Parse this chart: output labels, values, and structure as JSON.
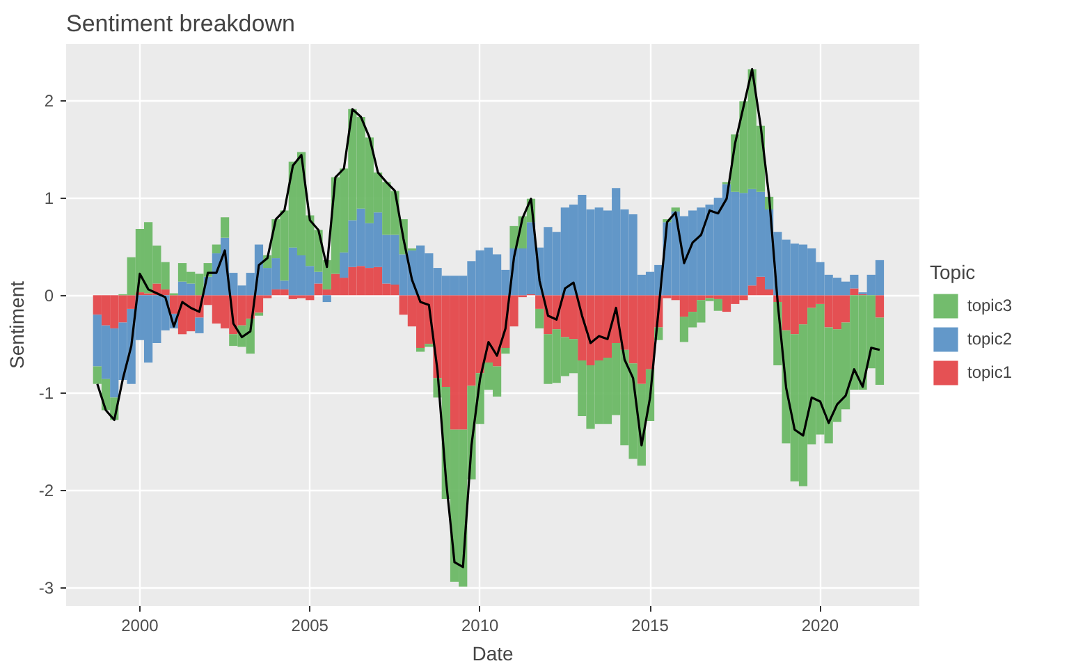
{
  "chart_data": {
    "type": "bar",
    "title": "Sentiment breakdown",
    "xlabel": "Date",
    "ylabel": "Sentiment",
    "legend_title": "Topic",
    "legend": "right",
    "grid": true,
    "stacked": true,
    "x": [
      "1998-10",
      "1999-01",
      "1999-04",
      "1999-07",
      "1999-10",
      "2000-01",
      "2000-04",
      "2000-07",
      "2000-10",
      "2001-01",
      "2001-04",
      "2001-07",
      "2001-10",
      "2002-01",
      "2002-04",
      "2002-07",
      "2002-10",
      "2003-01",
      "2003-04",
      "2003-07",
      "2003-10",
      "2004-01",
      "2004-04",
      "2004-07",
      "2004-10",
      "2005-01",
      "2005-04",
      "2005-07",
      "2005-10",
      "2006-01",
      "2006-04",
      "2006-07",
      "2006-10",
      "2007-01",
      "2007-04",
      "2007-07",
      "2007-10",
      "2008-01",
      "2008-04",
      "2008-07",
      "2008-10",
      "2009-01",
      "2009-04",
      "2009-07",
      "2009-10",
      "2010-01",
      "2010-04",
      "2010-07",
      "2010-10",
      "2011-01",
      "2011-04",
      "2011-07",
      "2011-10",
      "2012-01",
      "2012-04",
      "2012-07",
      "2012-10",
      "2013-01",
      "2013-04",
      "2013-07",
      "2013-10",
      "2014-01",
      "2014-04",
      "2014-07",
      "2014-10",
      "2015-01",
      "2015-04",
      "2015-07",
      "2015-10",
      "2016-01",
      "2016-04",
      "2016-07",
      "2016-10",
      "2017-01",
      "2017-04",
      "2017-07",
      "2017-10",
      "2018-01",
      "2018-04",
      "2018-07",
      "2018-10",
      "2019-01",
      "2019-04",
      "2019-07",
      "2019-10",
      "2020-01",
      "2020-04",
      "2020-07",
      "2020-10",
      "2021-01",
      "2021-04",
      "2021-07",
      "2021-10"
    ],
    "xlim": [
      "1997-11",
      "2022-12"
    ],
    "xticks": [
      "2000",
      "2005",
      "2010",
      "2015",
      "2020"
    ],
    "ylim": [
      -3.19,
      2.58
    ],
    "yticks": [
      -3,
      -2,
      -1,
      0,
      1,
      2
    ],
    "series": [
      {
        "name": "topic1",
        "color": "#e4484b",
        "values": [
          -0.2,
          -0.31,
          -0.34,
          -0.28,
          -0.14,
          0.03,
          0.02,
          0.12,
          0.06,
          -0.19,
          -0.4,
          -0.37,
          -0.23,
          -0.1,
          -0.29,
          -0.34,
          -0.4,
          -0.31,
          -0.24,
          -0.18,
          -0.03,
          0.06,
          0.06,
          -0.04,
          -0.03,
          -0.05,
          0.12,
          0.06,
          0.22,
          0.18,
          0.29,
          0.3,
          0.28,
          0.29,
          0.12,
          0.11,
          -0.2,
          -0.32,
          -0.54,
          -0.5,
          -0.85,
          -0.94,
          -1.38,
          -1.38,
          -0.93,
          -0.8,
          -0.69,
          -0.73,
          -0.54,
          -0.32,
          -0.02,
          0.01,
          -0.14,
          -0.4,
          -0.35,
          -0.43,
          -0.45,
          -0.67,
          -0.72,
          -0.67,
          -0.64,
          -0.49,
          -0.56,
          -0.7,
          -0.91,
          -0.76,
          -0.33,
          -0.03,
          -0.05,
          -0.22,
          -0.17,
          -0.05,
          -0.03,
          -0.04,
          -0.17,
          -0.09,
          -0.05,
          0.1,
          0.19,
          0.06,
          -0.07,
          -0.36,
          -0.4,
          -0.3,
          -0.13,
          -0.09,
          -0.33,
          -0.35,
          -0.28,
          0.07,
          0.01,
          0.0,
          -0.23
        ]
      },
      {
        "name": "topic2",
        "color": "#5b92c6",
        "values": [
          -0.53,
          -0.55,
          -0.71,
          -0.59,
          -0.77,
          -0.46,
          -0.69,
          -0.49,
          -0.36,
          -0.15,
          0.14,
          0.12,
          -0.16,
          0.19,
          0.43,
          0.59,
          0.23,
          0.1,
          0.23,
          0.52,
          0.28,
          0.32,
          0.09,
          0.49,
          0.41,
          0.3,
          0.12,
          -0.07,
          0.0,
          0.26,
          0.48,
          0.59,
          0.46,
          0.56,
          0.5,
          0.51,
          0.42,
          0.46,
          0.51,
          0.43,
          0.28,
          0.2,
          0.2,
          0.2,
          0.35,
          0.46,
          0.49,
          0.42,
          0.26,
          0.48,
          0.48,
          0.74,
          0.49,
          0.7,
          0.65,
          0.9,
          0.93,
          1.03,
          0.88,
          0.9,
          0.87,
          1.1,
          0.88,
          0.83,
          0.21,
          0.24,
          0.31,
          0.75,
          0.86,
          0.81,
          0.87,
          0.9,
          0.93,
          1.0,
          1.14,
          1.06,
          1.05,
          0.99,
          0.87,
          0.82,
          0.65,
          0.57,
          0.53,
          0.52,
          0.48,
          0.34,
          0.21,
          0.18,
          0.14,
          0.14,
          0.02,
          0.21,
          0.36
        ]
      },
      {
        "name": "topic3",
        "color": "#6bb865",
        "values": [
          -0.18,
          -0.32,
          -0.23,
          0.01,
          0.39,
          0.65,
          0.73,
          0.39,
          0.28,
          0.02,
          0.19,
          0.12,
          0.22,
          0.14,
          0.09,
          0.21,
          -0.12,
          -0.22,
          -0.36,
          -0.03,
          0.13,
          0.4,
          0.72,
          0.88,
          1.06,
          0.52,
          0.43,
          0.3,
          0.99,
          0.86,
          1.14,
          0.94,
          0.88,
          0.41,
          0.54,
          0.45,
          0.36,
          0.02,
          -0.04,
          -0.03,
          -0.2,
          -1.15,
          -1.56,
          -1.61,
          -0.96,
          -0.52,
          -0.28,
          -0.31,
          -0.06,
          0.23,
          0.33,
          0.24,
          -0.2,
          -0.51,
          -0.55,
          -0.4,
          -0.35,
          -0.57,
          -0.65,
          -0.65,
          -0.68,
          -0.74,
          -0.98,
          -0.98,
          -0.84,
          -0.53,
          -0.13,
          0.03,
          0.04,
          -0.26,
          -0.16,
          -0.23,
          -0.03,
          -0.12,
          0.02,
          0.59,
          0.94,
          1.23,
          0.68,
          0.13,
          -0.65,
          -1.16,
          -1.51,
          -1.66,
          -1.4,
          -1.34,
          -1.19,
          -0.95,
          -0.89,
          -0.97,
          -0.97,
          -0.75,
          -0.69
        ]
      },
      {
        "type": "line",
        "color": "#000000",
        "values": [
          -0.91,
          -1.18,
          -1.28,
          -0.86,
          -0.52,
          0.22,
          0.06,
          0.02,
          -0.02,
          -0.32,
          -0.07,
          -0.13,
          -0.17,
          0.23,
          0.23,
          0.46,
          -0.29,
          -0.43,
          -0.37,
          0.31,
          0.38,
          0.78,
          0.87,
          1.33,
          1.44,
          0.77,
          0.67,
          0.29,
          1.21,
          1.3,
          1.91,
          1.83,
          1.62,
          1.26,
          1.16,
          1.07,
          0.58,
          0.16,
          -0.07,
          -0.1,
          -0.77,
          -1.89,
          -2.74,
          -2.79,
          -1.54,
          -0.86,
          -0.48,
          -0.62,
          -0.34,
          0.39,
          0.79,
          0.99,
          0.15,
          -0.21,
          -0.25,
          0.07,
          0.13,
          -0.21,
          -0.49,
          -0.42,
          -0.45,
          -0.13,
          -0.66,
          -0.85,
          -1.54,
          -1.05,
          -0.15,
          0.75,
          0.85,
          0.33,
          0.54,
          0.62,
          0.87,
          0.84,
          0.99,
          1.56,
          1.94,
          2.32,
          1.74,
          1.01,
          -0.07,
          -0.95,
          -1.38,
          -1.44,
          -1.05,
          -1.09,
          -1.31,
          -1.12,
          -1.03,
          -0.76,
          -0.94,
          -0.54,
          -0.56
        ]
      }
    ]
  }
}
